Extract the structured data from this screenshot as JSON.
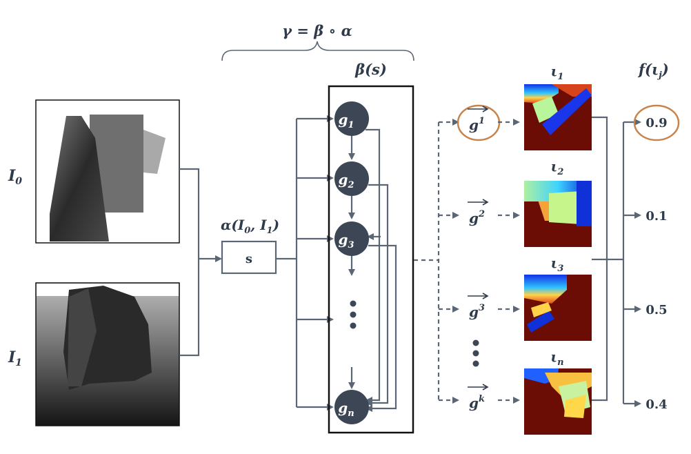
{
  "title": {
    "gamma_eq": "γ = β ∘ α"
  },
  "inputs": [
    {
      "label": "I",
      "sub": "0"
    },
    {
      "label": "I",
      "sub": "1"
    }
  ],
  "alpha": {
    "label": "α(I",
    "sub0": "0",
    "mid": ", I",
    "sub1": "1",
    "close": ")"
  },
  "s_box": {
    "label": "s"
  },
  "beta": {
    "label": "β(s)"
  },
  "nodes": [
    {
      "label": "g",
      "sub": "1"
    },
    {
      "label": "g",
      "sub": "2"
    },
    {
      "label": "g",
      "sub": "3"
    },
    {
      "label": "g",
      "sub": "n"
    }
  ],
  "vectors": [
    {
      "label": "g",
      "sup": "1",
      "highlighted": true
    },
    {
      "label": "g",
      "sup": "2",
      "highlighted": false
    },
    {
      "label": "g",
      "sup": "3",
      "highlighted": false
    },
    {
      "label": "g",
      "sup": "k",
      "highlighted": false
    }
  ],
  "iotas": [
    {
      "label": "ι",
      "sub": "1"
    },
    {
      "label": "ι",
      "sub": "2"
    },
    {
      "label": "ι",
      "sub": "3"
    },
    {
      "label": "ι",
      "sub": "n"
    }
  ],
  "scores_header": {
    "label": "f(ι",
    "sub": "j",
    "close": ")"
  },
  "scores": [
    {
      "value": "0.9",
      "highlighted": true
    },
    {
      "value": "0.1",
      "highlighted": false
    },
    {
      "value": "0.5",
      "highlighted": false
    },
    {
      "value": "0.4",
      "highlighted": false
    }
  ],
  "colors": {
    "edge": "#5b6675",
    "node": "#3c4655",
    "highlight": "#c8834a",
    "heatmap_bg": "#6b0d05"
  }
}
